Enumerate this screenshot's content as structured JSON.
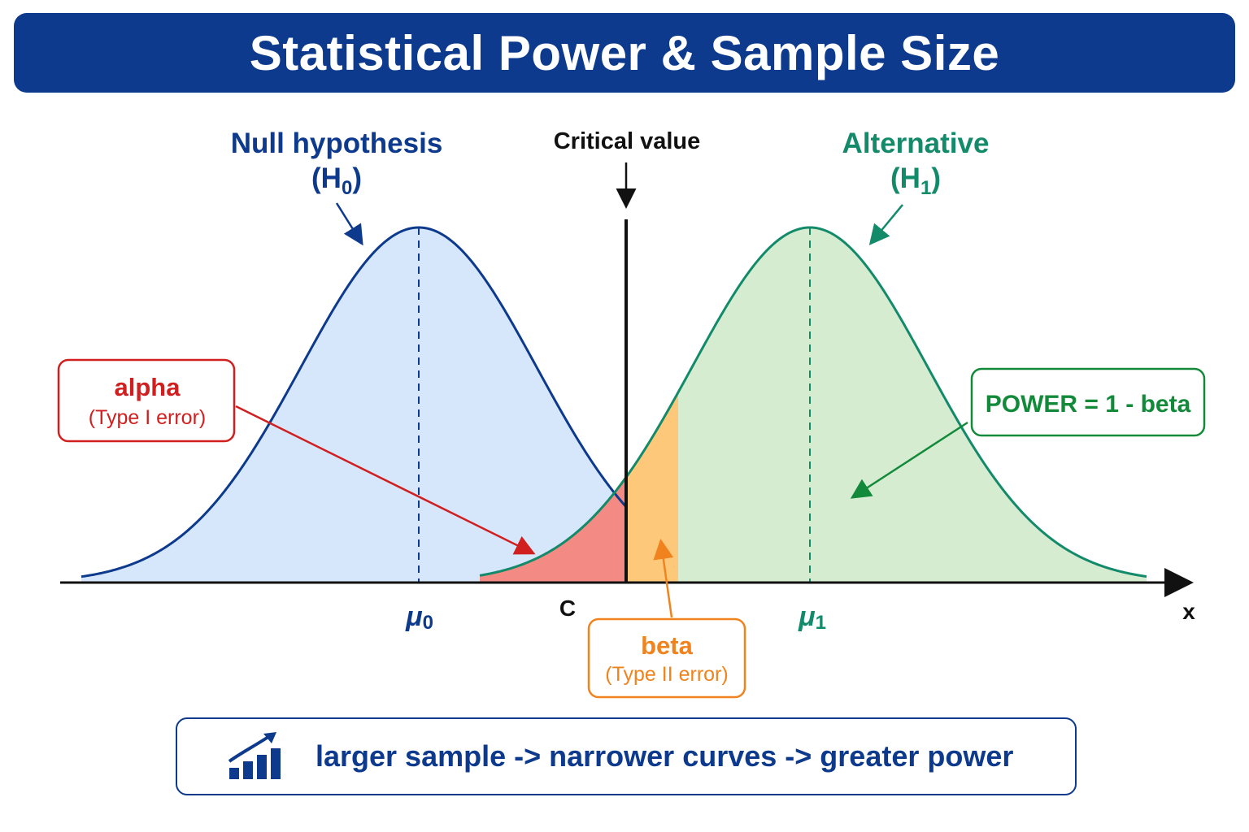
{
  "title": "Statistical Power & Sample Size",
  "null_hypothesis": {
    "line1": "Null hypothesis",
    "line2_prefix": "(H",
    "line2_sub": "0",
    "line2_suffix": ")"
  },
  "alternative": {
    "line1": "Alternative",
    "line2_prefix": "(H",
    "line2_sub": "1",
    "line2_suffix": ")"
  },
  "critical_value_label": "Critical value",
  "axis": {
    "mu0_symbol": "μ",
    "mu0_sub": "0",
    "mu1_symbol": "μ",
    "mu1_sub": "1",
    "c_label": "C",
    "x_label": "x"
  },
  "alpha_box": {
    "title": "alpha",
    "subtitle": "(Type I error)"
  },
  "beta_box": {
    "title": "beta",
    "subtitle": "(Type II error)"
  },
  "power_box": {
    "title": "POWER = 1 - beta"
  },
  "footer": {
    "text": "larger sample -> narrower curves -> greater power",
    "icon": "growth-chart-icon"
  },
  "colors": {
    "title_bg": "#0d3a8c",
    "null_curve": "#0d3a8c",
    "null_fill": "#d6e7fb",
    "alt_curve": "#138a6a",
    "alt_fill": "#d5ecd1",
    "alpha": "#d11f1f",
    "alpha_fill": "#f48a84",
    "beta": "#f0831d",
    "beta_fill": "#fdc87a",
    "power": "#138a3a"
  }
}
